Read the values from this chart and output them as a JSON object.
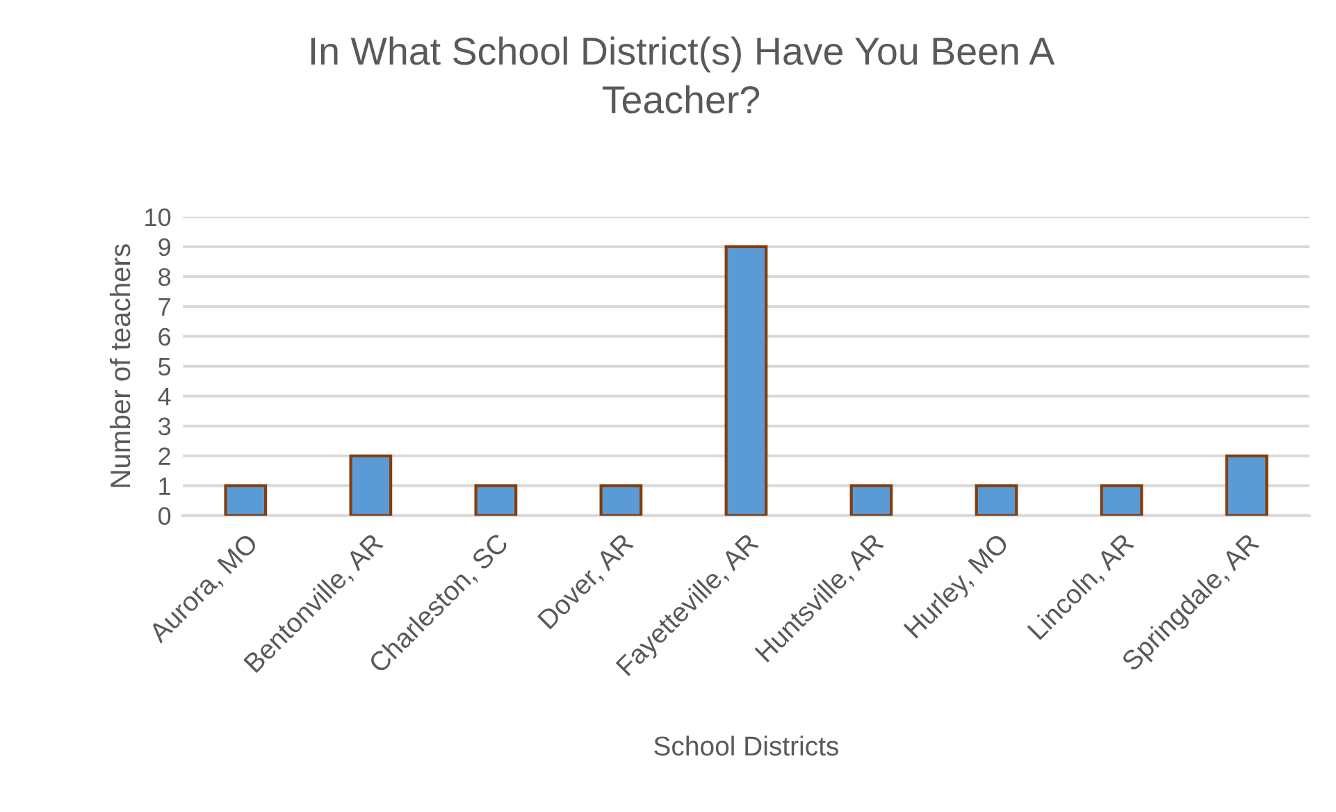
{
  "chart_data": {
    "type": "bar",
    "title": "In What School District(s) Have You Been A Teacher?",
    "xlabel": "School Districts",
    "ylabel": "Number of teachers",
    "categories": [
      "Aurora, MO",
      "Bentonville, AR",
      "Charleston, SC",
      "Dover, AR",
      "Fayetteville, AR",
      "Huntsville, AR",
      "Hurley, MO",
      "Lincoln, AR",
      "Springdale, AR"
    ],
    "series": [
      {
        "color": "#5b9bd5",
        "values": [
          1,
          2,
          1,
          1,
          9,
          1,
          1,
          1,
          2
        ]
      }
    ],
    "ylim": [
      0,
      10
    ],
    "yticks": [
      0,
      1,
      2,
      3,
      4,
      5,
      6,
      7,
      8,
      9,
      10
    ],
    "grid": "y"
  }
}
